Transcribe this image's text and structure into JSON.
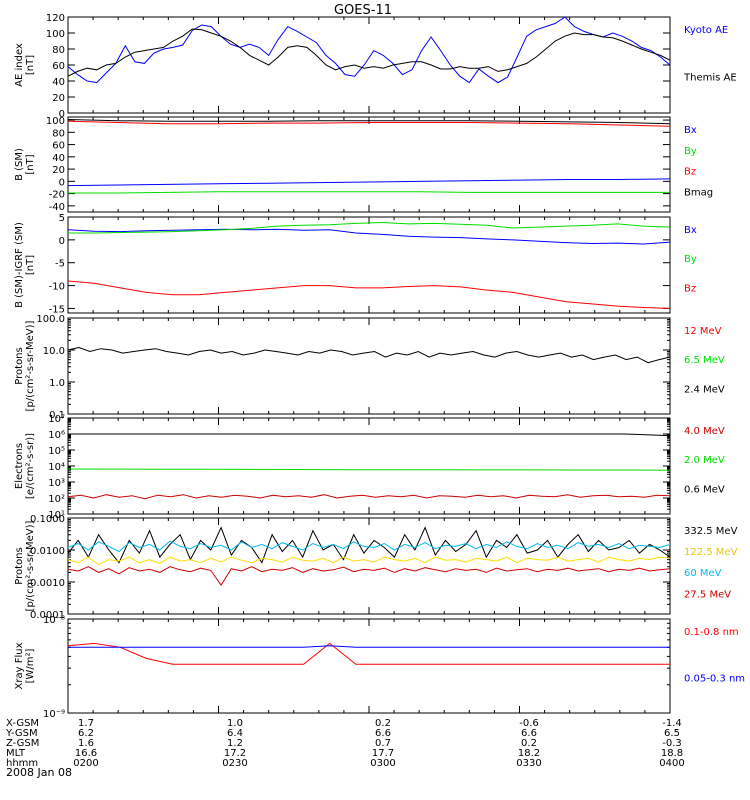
{
  "figure": {
    "title": "GOES-11",
    "date": "2008 Jan 08"
  },
  "chart_data": [
    {
      "type": "line",
      "ylabel": [
        "AE index",
        "[nT]"
      ],
      "ylim": [
        0,
        120
      ],
      "yticks": [
        "0",
        "20",
        "40",
        "60",
        "80",
        "100",
        "120"
      ],
      "ytick_values": [
        0,
        20,
        40,
        60,
        80,
        100,
        120
      ],
      "scale": "linear",
      "series": [
        {
          "name": "Kyoto AE",
          "color": "#0000ff",
          "values": [
            58,
            48,
            40,
            38,
            50,
            62,
            84,
            64,
            62,
            75,
            80,
            82,
            85,
            103,
            110,
            108,
            96,
            86,
            82,
            86,
            82,
            72,
            92,
            108,
            102,
            95,
            88,
            72,
            62,
            48,
            46,
            60,
            78,
            72,
            62,
            48,
            54,
            78,
            95,
            78,
            60,
            46,
            38,
            55,
            46,
            38,
            45,
            70,
            96,
            104,
            108,
            112,
            120,
            108,
            102,
            98,
            95,
            100,
            96,
            90,
            82,
            78,
            70,
            60
          ]
        },
        {
          "name": "Themis AE",
          "color": "#000000",
          "values": [
            46,
            52,
            56,
            54,
            60,
            62,
            70,
            76,
            78,
            80,
            82,
            90,
            96,
            105,
            104,
            100,
            96,
            90,
            82,
            72,
            66,
            60,
            70,
            82,
            84,
            82,
            72,
            60,
            54,
            58,
            60,
            56,
            58,
            56,
            60,
            62,
            64,
            64,
            60,
            55,
            55,
            58,
            56,
            56,
            58,
            52,
            54,
            58,
            62,
            70,
            80,
            90,
            96,
            100,
            98,
            98,
            95,
            94,
            90,
            85,
            80,
            76,
            72,
            66
          ]
        }
      ]
    },
    {
      "type": "line",
      "ylabel": [
        "B (SM)",
        "[nT]"
      ],
      "ylim": [
        -50,
        105
      ],
      "yticks": [
        "-40",
        "-20",
        "0",
        "20",
        "40",
        "60",
        "80",
        "100"
      ],
      "ytick_values": [
        -40,
        -20,
        0,
        20,
        40,
        60,
        80,
        100
      ],
      "scale": "linear",
      "series": [
        {
          "name": "Bx",
          "color": "#0000ff",
          "values": [
            -7,
            -6,
            -5,
            -4,
            -3,
            -2,
            -1,
            0,
            1,
            2,
            3,
            3,
            4
          ]
        },
        {
          "name": "By",
          "color": "#00dd00",
          "values": [
            -19,
            -19,
            -18,
            -17,
            -17,
            -17,
            -17,
            -17,
            -18,
            -18,
            -18,
            -18,
            -18
          ]
        },
        {
          "name": "Bz",
          "color": "#ff0000",
          "values": [
            98,
            96,
            94,
            94,
            95,
            95,
            96,
            96,
            96,
            95,
            94,
            92,
            90
          ]
        },
        {
          "name": "Bmag",
          "color": "#000000",
          "values": [
            101,
            99,
            98,
            98,
            98,
            99,
            99,
            99,
            99,
            98,
            97,
            96,
            94
          ]
        }
      ]
    },
    {
      "type": "line",
      "ylabel": [
        "B (SM)-IGRF (SM)",
        "[nT]"
      ],
      "ylim": [
        -16,
        5
      ],
      "yticks": [
        "-15",
        "-10",
        "-5",
        "0",
        "5"
      ],
      "ytick_values": [
        -15,
        -10,
        -5,
        0,
        5
      ],
      "scale": "linear",
      "series": [
        {
          "name": "Bx",
          "color": "#0000ff",
          "values": [
            2.2,
            1.9,
            1.8,
            2.0,
            2.1,
            2.2,
            2.3,
            2.2,
            2.3,
            2.1,
            2.2,
            1.5,
            1.2,
            0.8,
            0.6,
            0.5,
            0.2,
            0.0,
            -0.3,
            -0.6,
            -0.8,
            -0.7,
            -0.9,
            -0.5
          ]
        },
        {
          "name": "By",
          "color": "#00dd00",
          "values": [
            1.5,
            1.5,
            1.6,
            1.7,
            1.8,
            2.0,
            2.2,
            2.5,
            3.0,
            3.2,
            3.3,
            3.6,
            3.8,
            3.5,
            3.6,
            3.4,
            3.2,
            2.6,
            2.8,
            3.0,
            3.2,
            3.5,
            3.0,
            2.8
          ]
        },
        {
          "name": "Bz",
          "color": "#ff0000",
          "values": [
            -9.0,
            -9.5,
            -10.5,
            -11.5,
            -12.0,
            -12.0,
            -11.5,
            -11.0,
            -10.5,
            -10.0,
            -10.0,
            -10.5,
            -10.5,
            -10.2,
            -10.0,
            -10.3,
            -11.0,
            -11.5,
            -12.5,
            -13.5,
            -14.0,
            -14.5,
            -14.8,
            -15.0
          ]
        }
      ]
    },
    {
      "type": "line",
      "ylabel": [
        "Protons",
        "[p/(cm²-s-sr-MeV)]"
      ],
      "ylim": [
        0.1,
        100
      ],
      "yticks": [
        "0.1",
        "1.0",
        "10.0",
        "100.0"
      ],
      "ytick_values": [
        0.1,
        1,
        10,
        100
      ],
      "scale": "log",
      "series": [
        {
          "name": "12 MeV",
          "color": "#ff0000",
          "values": []
        },
        {
          "name": "6.5 MeV",
          "color": "#00dd00",
          "values": []
        },
        {
          "name": "2.4 MeV",
          "color": "#000000",
          "values": [
            10,
            12,
            9,
            11,
            10,
            8,
            9,
            10,
            11,
            9,
            8,
            7,
            9,
            10,
            8,
            9,
            7,
            8,
            10,
            9,
            8,
            7,
            9,
            8,
            10,
            9,
            7,
            8,
            9,
            6,
            8,
            7,
            9,
            6,
            8,
            7,
            8,
            9,
            7,
            6,
            8,
            9,
            7,
            6,
            7,
            8,
            6,
            7,
            5,
            6,
            7,
            5,
            6,
            4,
            5,
            6
          ]
        }
      ]
    },
    {
      "type": "line",
      "ylabel": [
        "Electrons",
        "[e/(cm²-s-sr)]"
      ],
      "ylim": [
        10,
        10000000
      ],
      "yticks": [
        "10¹",
        "10²",
        "10³",
        "10⁴",
        "10⁵",
        "10⁶",
        "10⁷"
      ],
      "ytick_values": [
        10,
        100,
        1000,
        10000,
        100000,
        1000000,
        10000000
      ],
      "scale": "log",
      "series": [
        {
          "name": "4.0 MeV",
          "color": "#cc0000",
          "values": [
            120,
            150,
            100,
            160,
            110,
            140,
            90,
            150,
            120,
            160,
            100,
            140,
            110,
            150,
            130,
            100,
            150,
            120,
            140,
            110,
            160,
            100,
            130,
            150,
            110,
            140,
            120,
            150,
            100,
            140,
            130,
            110,
            150,
            120,
            140,
            100,
            150,
            130,
            120,
            160,
            110,
            140,
            150,
            120,
            130,
            110,
            150,
            140
          ]
        },
        {
          "name": "2.0 MeV",
          "color": "#00dd00",
          "values": [
            6500,
            6400,
            6300,
            6200,
            6100,
            6000,
            5900,
            5800,
            5800,
            5700,
            5700,
            5600,
            5600,
            5500
          ]
        },
        {
          "name": "0.6 MeV",
          "color": "#000000",
          "values": [
            1000000,
            1000000,
            1000000,
            1000000,
            1000000,
            1000000,
            1000000,
            1000000,
            1000000,
            1000000,
            1000000,
            1000000,
            1000000,
            800000
          ]
        }
      ]
    },
    {
      "type": "line",
      "ylabel": [
        "Protons",
        "[p/(cm²-s-sr-MeV)]"
      ],
      "ylim": [
        0.0001,
        0.1
      ],
      "yticks": [
        "0.0001",
        "0.0010",
        "0.0100",
        "0.1000"
      ],
      "ytick_values": [
        0.0001,
        0.001,
        0.01,
        0.1
      ],
      "scale": "log",
      "series": [
        {
          "name": "332.5 MeV",
          "color": "#000000",
          "values": [
            0.008,
            0.02,
            0.006,
            0.03,
            0.01,
            0.004,
            0.02,
            0.008,
            0.04,
            0.006,
            0.015,
            0.03,
            0.005,
            0.02,
            0.01,
            0.05,
            0.007,
            0.02,
            0.012,
            0.004,
            0.03,
            0.009,
            0.02,
            0.006,
            0.04,
            0.01,
            0.015,
            0.005,
            0.03,
            0.008,
            0.02,
            0.012,
            0.006,
            0.03,
            0.01,
            0.05,
            0.007,
            0.02,
            0.009,
            0.015,
            0.04,
            0.006,
            0.02,
            0.012,
            0.03,
            0.008,
            0.01,
            0.02,
            0.006,
            0.015,
            0.03,
            0.009,
            0.02,
            0.01,
            0.012,
            0.02,
            0.008,
            0.015,
            0.01,
            0.006
          ]
        },
        {
          "name": "122.5 MeV",
          "color": "#ffdd00",
          "values": [
            0.005,
            0.004,
            0.006,
            0.0035,
            0.005,
            0.0045,
            0.006,
            0.004,
            0.005,
            0.0038,
            0.006,
            0.0045,
            0.005,
            0.004,
            0.0055,
            0.0042,
            0.006,
            0.0048,
            0.004,
            0.0055,
            0.005,
            0.0042,
            0.006,
            0.0048,
            0.0045,
            0.0055,
            0.004,
            0.006,
            0.0045,
            0.005,
            0.0042,
            0.006,
            0.005,
            0.0045,
            0.0055,
            0.004,
            0.006,
            0.0048,
            0.005,
            0.0042,
            0.0055,
            0.005,
            0.0045,
            0.006,
            0.004,
            0.0055,
            0.005,
            0.0048,
            0.006,
            0.0045,
            0.005,
            0.0055,
            0.0042,
            0.006,
            0.005,
            0.0045,
            0.0055,
            0.005,
            0.006,
            0.0055
          ]
        },
        {
          "name": "60 MeV",
          "color": "#00bbee",
          "values": [
            0.012,
            0.016,
            0.01,
            0.018,
            0.013,
            0.009,
            0.017,
            0.012,
            0.015,
            0.01,
            0.019,
            0.013,
            0.011,
            0.016,
            0.012,
            0.014,
            0.01,
            0.018,
            0.012,
            0.015,
            0.011,
            0.017,
            0.013,
            0.01,
            0.016,
            0.012,
            0.015,
            0.011,
            0.018,
            0.013,
            0.012,
            0.016,
            0.01,
            0.015,
            0.012,
            0.017,
            0.011,
            0.014,
            0.013,
            0.016,
            0.011,
            0.015,
            0.012,
            0.018,
            0.013,
            0.011,
            0.016,
            0.012,
            0.014,
            0.011,
            0.017,
            0.013,
            0.015,
            0.012,
            0.016,
            0.011,
            0.014,
            0.013,
            0.012,
            0.015
          ]
        },
        {
          "name": "27.5 MeV",
          "color": "#cc0000",
          "values": [
            0.0025,
            0.0022,
            0.003,
            0.002,
            0.0026,
            0.0018,
            0.0028,
            0.0022,
            0.0025,
            0.002,
            0.003,
            0.0024,
            0.0021,
            0.0027,
            0.0023,
            0.0008,
            0.0026,
            0.0022,
            0.003,
            0.0021,
            0.0025,
            0.0023,
            0.0028,
            0.002,
            0.0026,
            0.0022,
            0.0024,
            0.0029,
            0.0021,
            0.0025,
            0.0023,
            0.0027,
            0.002,
            0.0026,
            0.0022,
            0.0028,
            0.0024,
            0.0021,
            0.0026,
            0.0023,
            0.0025,
            0.002,
            0.0027,
            0.0022,
            0.0024,
            0.0026,
            0.0021,
            0.0025,
            0.0023,
            0.0027,
            0.0022,
            0.0024,
            0.0026,
            0.0021,
            0.0025,
            0.0023,
            0.0027,
            0.0022,
            0.0024,
            0.0026
          ]
        }
      ]
    },
    {
      "type": "line",
      "ylabel": [
        "Xray Flux",
        "[W/m²]"
      ],
      "ylim": [
        1e-09,
        1e-08
      ],
      "yticks": [
        "10⁻⁹",
        "10⁻⁸"
      ],
      "ytick_values": [
        1e-09,
        1e-08
      ],
      "scale": "log",
      "series": [
        {
          "name": "0.1-0.8 nm",
          "color": "#ff0000",
          "values": [
            5.2e-09,
            5.5e-09,
            5e-09,
            3.8e-09,
            3.3e-09,
            3.3e-09,
            3.3e-09,
            3.3e-09,
            3.3e-09,
            3.3e-09,
            5.5e-09,
            3.3e-09,
            3.3e-09,
            3.3e-09,
            3.3e-09,
            3.3e-09,
            3.3e-09,
            3.3e-09,
            3.3e-09,
            3.3e-09,
            3.3e-09,
            3.3e-09,
            3.3e-09,
            3.3e-09
          ]
        },
        {
          "name": "0.05-0.3 nm",
          "color": "#0000ff",
          "values": [
            5e-09,
            5e-09,
            5e-09,
            5e-09,
            5e-09,
            5e-09,
            5e-09,
            5e-09,
            5e-09,
            5e-09,
            5.2e-09,
            5e-09,
            5e-09,
            5e-09,
            5e-09,
            5e-09,
            5e-09,
            5e-09,
            5e-09,
            5e-09,
            5e-09,
            5e-09,
            5e-09,
            5e-09
          ]
        }
      ]
    }
  ],
  "orbit_table": {
    "rows": [
      {
        "label": "X-GSM",
        "values": [
          "1.7",
          "1.0",
          "0.2",
          "-0.6",
          "-1.4"
        ]
      },
      {
        "label": "Y-GSM",
        "values": [
          "6.2",
          "6.4",
          "6.6",
          "6.6",
          "6.5"
        ]
      },
      {
        "label": "Z-GSM",
        "values": [
          "1.6",
          "1.2",
          "0.7",
          "0.2",
          "-0.3"
        ]
      },
      {
        "label": "MLT",
        "values": [
          "16.6",
          "17.2",
          "17.7",
          "18.2",
          "18.8"
        ]
      },
      {
        "label": "hhmm",
        "values": [
          "0200",
          "0230",
          "0300",
          "0330",
          "0400"
        ]
      }
    ]
  }
}
